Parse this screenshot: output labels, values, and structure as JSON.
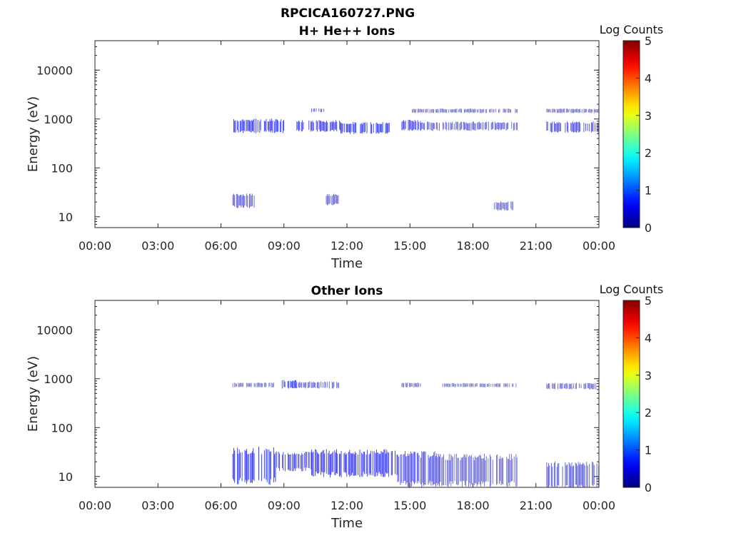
{
  "figure": {
    "title": "RPCICA160727.PNG"
  },
  "chart_data": [
    {
      "type": "heatmap",
      "title": "H+ He++ Ions",
      "xlabel": "Time",
      "ylabel": "Energy (eV)",
      "yscale": "log",
      "ylim": [
        6,
        40000
      ],
      "xlim_hours": [
        0,
        24
      ],
      "xticks": [
        "00:00",
        "03:00",
        "06:00",
        "09:00",
        "12:00",
        "15:00",
        "18:00",
        "21:00",
        "00:00"
      ],
      "yticks": [
        {
          "value": 10,
          "label": "10"
        },
        {
          "value": 100,
          "label": "100"
        },
        {
          "value": 1000,
          "label": "1000"
        },
        {
          "value": 10000,
          "label": "10000"
        }
      ],
      "colorbar": {
        "label": "Log Counts",
        "min": 0,
        "max": 5,
        "ticks": [
          "0",
          "1",
          "2",
          "3",
          "4",
          "5"
        ],
        "colormap": "jet"
      },
      "bands": [
        {
          "t_start": 6.55,
          "t_end": 9.0,
          "e_low": 550,
          "e_high": 950,
          "log_counts": 0.6
        },
        {
          "t_start": 9.6,
          "t_end": 11.7,
          "e_low": 580,
          "e_high": 900,
          "log_counts": 0.55
        },
        {
          "t_start": 11.7,
          "t_end": 14.0,
          "e_low": 520,
          "e_high": 820,
          "log_counts": 0.65
        },
        {
          "t_start": 14.6,
          "t_end": 15.5,
          "e_low": 600,
          "e_high": 920,
          "log_counts": 0.5
        },
        {
          "t_start": 15.5,
          "t_end": 20.1,
          "e_low": 600,
          "e_high": 850,
          "log_counts": 0.3
        },
        {
          "t_start": 21.5,
          "t_end": 24.0,
          "e_low": 550,
          "e_high": 850,
          "log_counts": 0.45
        },
        {
          "t_start": 10.3,
          "t_end": 10.9,
          "e_low": 1400,
          "e_high": 1650,
          "log_counts": 0.4
        },
        {
          "t_start": 15.1,
          "t_end": 20.1,
          "e_low": 1350,
          "e_high": 1600,
          "log_counts": 0.2
        },
        {
          "t_start": 21.5,
          "t_end": 24.0,
          "e_low": 1350,
          "e_high": 1600,
          "log_counts": 0.2
        },
        {
          "t_start": 6.55,
          "t_end": 7.6,
          "e_low": 16,
          "e_high": 28,
          "log_counts": 0.35
        },
        {
          "t_start": 11.0,
          "t_end": 11.6,
          "e_low": 18,
          "e_high": 28,
          "log_counts": 0.3
        },
        {
          "t_start": 19.0,
          "t_end": 19.9,
          "e_low": 14,
          "e_high": 20,
          "log_counts": 0.2
        }
      ]
    },
    {
      "type": "heatmap",
      "title": "Other Ions",
      "xlabel": "Time",
      "ylabel": "Energy (eV)",
      "yscale": "log",
      "ylim": [
        6,
        40000
      ],
      "xlim_hours": [
        0,
        24
      ],
      "xticks": [
        "00:00",
        "03:00",
        "06:00",
        "09:00",
        "12:00",
        "15:00",
        "18:00",
        "21:00",
        "00:00"
      ],
      "yticks": [
        {
          "value": 10,
          "label": "10"
        },
        {
          "value": 100,
          "label": "100"
        },
        {
          "value": 1000,
          "label": "1000"
        },
        {
          "value": 10000,
          "label": "10000"
        }
      ],
      "colorbar": {
        "label": "Log Counts",
        "min": 0,
        "max": 5,
        "ticks": [
          "0",
          "1",
          "2",
          "3",
          "4",
          "5"
        ],
        "colormap": "jet"
      },
      "bands": [
        {
          "t_start": 6.55,
          "t_end": 8.6,
          "e_low": 8,
          "e_high": 34,
          "log_counts": 0.65
        },
        {
          "t_start": 8.6,
          "t_end": 10.3,
          "e_low": 14,
          "e_high": 30,
          "log_counts": 0.5
        },
        {
          "t_start": 10.3,
          "t_end": 14.4,
          "e_low": 11,
          "e_high": 32,
          "log_counts": 0.6
        },
        {
          "t_start": 14.4,
          "t_end": 16.5,
          "e_low": 7,
          "e_high": 28,
          "log_counts": 0.4
        },
        {
          "t_start": 16.5,
          "t_end": 20.1,
          "e_low": 7,
          "e_high": 25,
          "log_counts": 0.25
        },
        {
          "t_start": 21.5,
          "t_end": 24.0,
          "e_low": 6,
          "e_high": 18,
          "log_counts": 0.35
        },
        {
          "t_start": 8.9,
          "t_end": 9.6,
          "e_low": 650,
          "e_high": 900,
          "log_counts": 0.7
        },
        {
          "t_start": 9.6,
          "t_end": 11.7,
          "e_low": 650,
          "e_high": 850,
          "log_counts": 0.3
        },
        {
          "t_start": 6.55,
          "t_end": 8.5,
          "e_low": 680,
          "e_high": 820,
          "log_counts": 0.2
        },
        {
          "t_start": 14.6,
          "t_end": 15.5,
          "e_low": 680,
          "e_high": 820,
          "log_counts": 0.2
        },
        {
          "t_start": 16.5,
          "t_end": 20.1,
          "e_low": 680,
          "e_high": 800,
          "log_counts": 0.15
        },
        {
          "t_start": 21.5,
          "t_end": 24.0,
          "e_low": 620,
          "e_high": 800,
          "log_counts": 0.25
        }
      ]
    }
  ]
}
